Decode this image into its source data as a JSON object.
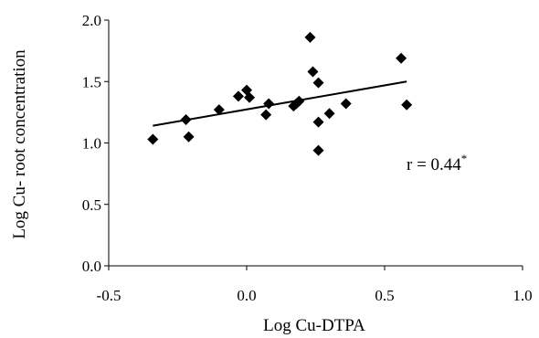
{
  "chart_data": {
    "type": "scatter",
    "title": "",
    "xlabel": "Log Cu-DTPA",
    "ylabel": "Log Cu- root concentration",
    "xlim": [
      -0.5,
      1.0
    ],
    "ylim": [
      0.0,
      2.0
    ],
    "xticks": [
      "-0.5",
      "0.0",
      "0.5",
      "1.0"
    ],
    "yticks": [
      "0.0",
      "0.5",
      "1.0",
      "1.5",
      "2.0"
    ],
    "grid": false,
    "legend": "none",
    "marker": "diamond",
    "marker_color": "#000000",
    "trendline": {
      "type": "linear",
      "x": [
        -0.34,
        0.58
      ],
      "y": [
        1.14,
        1.5
      ],
      "color": "#000000"
    },
    "annotation": {
      "text": "r = 0.44",
      "superscript": "*"
    },
    "series": [
      {
        "x": [
          -0.34,
          -0.22,
          -0.21,
          -0.1,
          -0.03,
          0.0,
          0.01,
          0.07,
          0.08,
          0.17,
          0.18,
          0.19,
          0.23,
          0.24,
          0.26,
          0.26,
          0.26,
          0.3,
          0.36,
          0.56,
          0.58
        ],
        "y": [
          1.03,
          1.19,
          1.05,
          1.27,
          1.38,
          1.43,
          1.37,
          1.23,
          1.32,
          1.3,
          1.32,
          1.34,
          1.86,
          1.58,
          1.49,
          1.17,
          0.94,
          1.24,
          1.32,
          1.69,
          1.31
        ]
      }
    ]
  }
}
